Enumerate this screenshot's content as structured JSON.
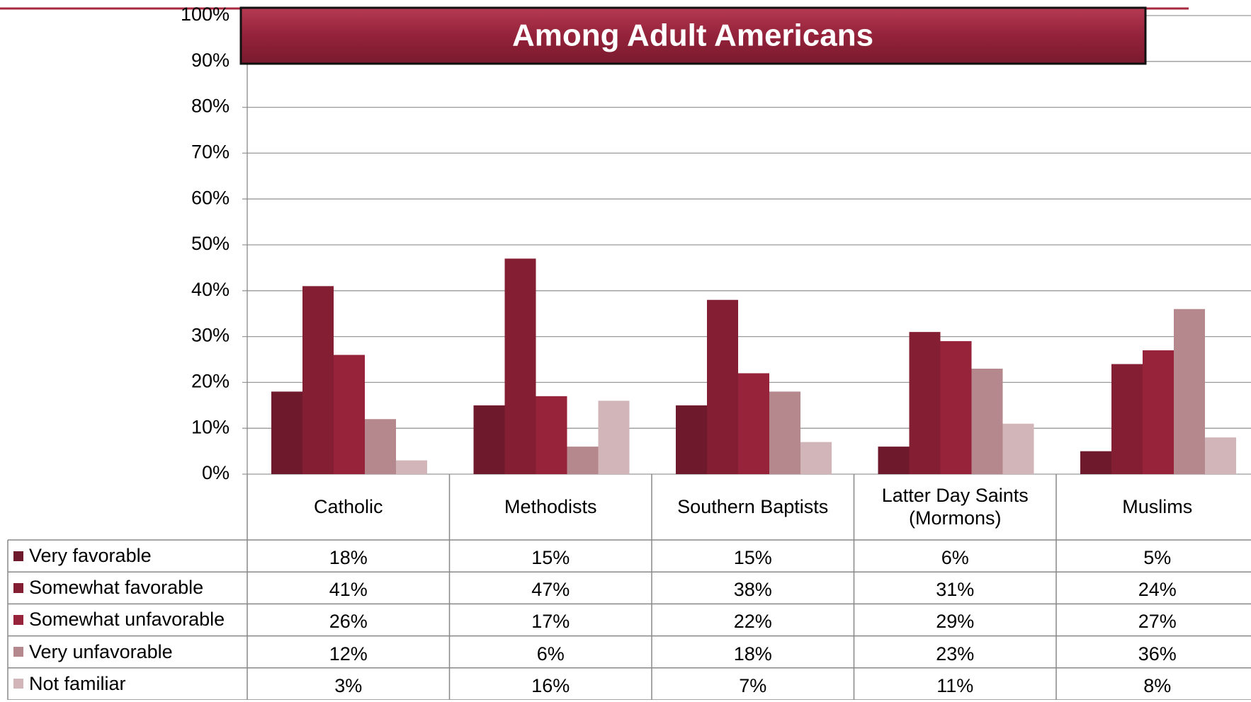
{
  "chart_data": {
    "type": "bar",
    "title": "Among Adult Americans",
    "categories": [
      "Catholic",
      "Methodists",
      "Southern Baptists",
      "Latter Day Saints (Mormons)",
      "Muslims"
    ],
    "series": [
      {
        "name": "Very favorable",
        "color": "#6e1a2c",
        "values": [
          18,
          15,
          15,
          6,
          5
        ],
        "value_labels": [
          "18%",
          "15%",
          "15%",
          "6%",
          "5%"
        ]
      },
      {
        "name": "Somewhat favorable",
        "color": "#841f33",
        "values": [
          41,
          47,
          38,
          31,
          24
        ],
        "value_labels": [
          "41%",
          "47%",
          "38%",
          "31%",
          "24%"
        ]
      },
      {
        "name": "Somewhat unfavorable",
        "color": "#96233a",
        "values": [
          26,
          17,
          22,
          29,
          27
        ],
        "value_labels": [
          "26%",
          "17%",
          "22%",
          "29%",
          "27%"
        ]
      },
      {
        "name": "Very unfavorable",
        "color": "#b5888d",
        "values": [
          12,
          6,
          18,
          23,
          36
        ],
        "value_labels": [
          "12%",
          "6%",
          "18%",
          "23%",
          "36%"
        ]
      },
      {
        "name": "Not familiar",
        "color": "#d1b5b8",
        "values": [
          3,
          16,
          7,
          11,
          8
        ],
        "value_labels": [
          "3%",
          "16%",
          "7%",
          "11%",
          "8%"
        ]
      }
    ],
    "ylim": [
      0,
      100
    ],
    "yticks": [
      {
        "value": 0,
        "label": "0%"
      },
      {
        "value": 10,
        "label": "10%"
      },
      {
        "value": 20,
        "label": "20%"
      },
      {
        "value": 30,
        "label": "30%"
      },
      {
        "value": 40,
        "label": "40%"
      },
      {
        "value": 50,
        "label": "50%"
      },
      {
        "value": 60,
        "label": "60%"
      },
      {
        "value": 70,
        "label": "70%"
      },
      {
        "value": 80,
        "label": "80%"
      },
      {
        "value": 90,
        "label": "90%"
      },
      {
        "value": 100,
        "label": "100%"
      }
    ],
    "grid": true
  }
}
